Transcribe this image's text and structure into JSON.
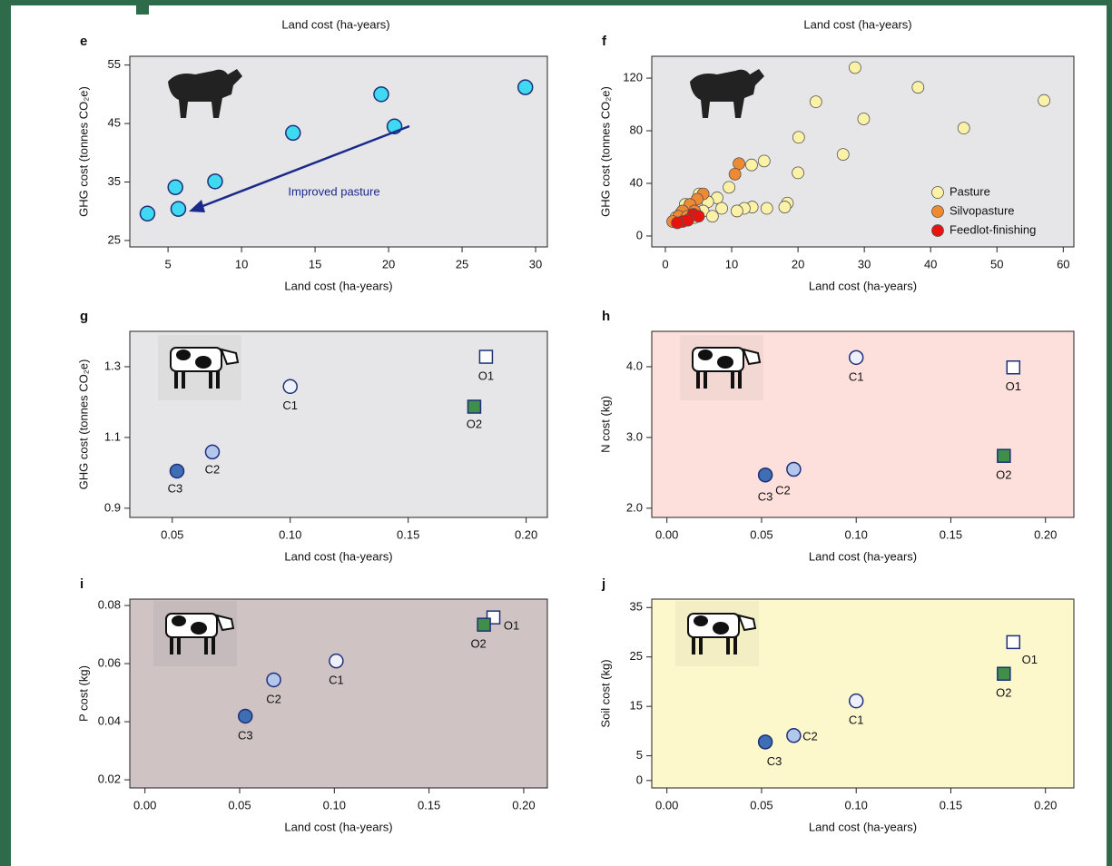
{
  "cropped_labels": [
    "Land cost (ha-years)",
    "Land cost (ha-years)"
  ],
  "chart_data": [
    {
      "type": "scatter",
      "panel": "e",
      "xlabel": "Land cost (ha-years)",
      "ylabel": "GHG cost (tonnes CO₂e)",
      "background": "#e6e6e8",
      "xlim": [
        2.4,
        30.8
      ],
      "ylim": [
        23.9,
        56.5
      ],
      "xticks": [
        5,
        10,
        15,
        20,
        25,
        30
      ],
      "yticks": [
        25,
        35,
        45,
        55
      ],
      "x": [
        3.6,
        5.5,
        5.7,
        8.2,
        13.5,
        19.5,
        20.4,
        29.3
      ],
      "values": [
        29.6,
        34.1,
        30.4,
        35.1,
        43.4,
        50.0,
        44.5,
        51.2
      ],
      "color": "#3fd9f2",
      "annotation": "Improved pasture"
    },
    {
      "type": "scatter",
      "panel": "f",
      "xlabel": "Land cost (ha-years)",
      "ylabel": "GHG cost (tonnes CO₂e)",
      "background": "#e6e6e8",
      "xlim": [
        -2.05,
        61.6
      ],
      "ylim": [
        -8.3,
        136.6
      ],
      "xticks": [
        0,
        10,
        20,
        30,
        40,
        50,
        60
      ],
      "yticks": [
        0,
        40,
        80,
        120
      ],
      "legend": "lower right",
      "series": [
        {
          "name": "Pasture",
          "color": "#fbf2a8",
          "x": [
            28.6,
            38.1,
            57.1,
            45,
            22.7,
            29.9,
            20.1,
            26.8,
            20,
            14.9,
            13,
            9.6,
            18.4,
            18,
            15.3,
            13.1,
            11.9,
            10.8,
            7.8,
            6.4,
            5.1,
            3.7,
            2.3,
            1.2,
            4.4,
            5.7,
            8.5,
            7.1,
            3,
            1.6
          ],
          "values": [
            128,
            113,
            103,
            82,
            102,
            89,
            75,
            62,
            48,
            57,
            54,
            37,
            25,
            22,
            21,
            22,
            21,
            19,
            29,
            26,
            32,
            22,
            17,
            11,
            14,
            19,
            21,
            15,
            24,
            14
          ]
        },
        {
          "name": "Silvopasture",
          "color": "#f08a32",
          "x": [
            11.1,
            10.5,
            5.7,
            4.8,
            3.7,
            2.6,
            2,
            1.1,
            4.4,
            3.3
          ],
          "values": [
            55,
            47,
            32,
            28,
            24,
            19,
            15,
            11,
            19,
            15
          ]
        },
        {
          "name": "Feedlot-finishing",
          "color": "#e8120e",
          "x": [
            2.6,
            4.2,
            5,
            1.8,
            3.4
          ],
          "values": [
            11,
            16.5,
            15,
            10,
            12
          ]
        }
      ]
    },
    {
      "type": "scatter",
      "panel": "g",
      "xlabel": "Land cost (ha-years)",
      "ylabel": "GHG cost (tonnes CO₂e)",
      "background": "#e6e6e8",
      "xlim": [
        0.032,
        0.209
      ],
      "ylim": [
        0.874,
        1.4
      ],
      "xticks": [
        0.05,
        {
          "value": 0.1,
          "label": "0.10"
        },
        0.15,
        {
          "value": 0.2,
          "label": "0.20"
        }
      ],
      "yticks": [
        0.9,
        1.1,
        1.3
      ],
      "x": [
        0.1,
        0.067,
        0.052,
        0.183,
        0.178
      ],
      "values": [
        1.244,
        1.059,
        1.005,
        1.328,
        1.187
      ],
      "point_labels": [
        "C1",
        "C2",
        "C3",
        "O1",
        "O2"
      ],
      "markers": [
        "circle",
        "circle",
        "circle",
        "square",
        "square"
      ],
      "colors": [
        "#eef0fb",
        "#b3c6ec",
        "#3e6fb5",
        "#ffffff",
        "#3f8f4a"
      ]
    },
    {
      "type": "scatter",
      "panel": "h",
      "xlabel": "Land cost (ha-years)",
      "ylabel": "N cost (kg)",
      "background": "#fde0dc",
      "xlim": [
        -0.008,
        0.215
      ],
      "ylim": [
        1.87,
        4.5
      ],
      "xticks": [
        {
          "value": 0,
          "label": "0.00"
        },
        0.05,
        {
          "value": 0.1,
          "label": "0.10"
        },
        0.15,
        {
          "value": 0.2,
          "label": "0.20"
        }
      ],
      "yticks": [
        {
          "value": 2,
          "label": "2.0"
        },
        {
          "value": 3,
          "label": "3.0"
        },
        {
          "value": 4,
          "label": "4.0"
        }
      ],
      "x": [
        0.1,
        0.067,
        0.052,
        0.183,
        0.178
      ],
      "values": [
        4.13,
        2.55,
        2.47,
        3.99,
        2.74
      ],
      "point_labels": [
        "C1",
        "C2",
        "C3",
        "O1",
        "O2"
      ],
      "markers": [
        "circle",
        "circle",
        "circle",
        "square",
        "square"
      ],
      "colors": [
        "#eef0fb",
        "#b3c6ec",
        "#3e6fb5",
        "#ffffff",
        "#3f8f4a"
      ]
    },
    {
      "type": "scatter",
      "panel": "i",
      "xlabel": "Land cost (ha-years)",
      "ylabel": "P cost (kg)",
      "background": "#cfc3c4",
      "xlim": [
        -0.008,
        0.2125
      ],
      "ylim": [
        0.0172,
        0.0822
      ],
      "xticks": [
        {
          "value": 0,
          "label": "0.00"
        },
        0.05,
        {
          "value": 0.1,
          "label": "0.10"
        },
        0.15,
        {
          "value": 0.2,
          "label": "0.20"
        }
      ],
      "yticks": [
        0.02,
        0.04,
        0.06,
        0.08
      ],
      "x": [
        0.101,
        0.068,
        0.053,
        0.184,
        0.179
      ],
      "values": [
        0.0609,
        0.0544,
        0.0419,
        0.0759,
        0.0734
      ],
      "point_labels": [
        "C1",
        "C2",
        "C3",
        "O1",
        "O2"
      ],
      "markers": [
        "circle",
        "circle",
        "circle",
        "square",
        "square"
      ],
      "colors": [
        "#eef0fb",
        "#b3c6ec",
        "#3e6fb5",
        "#ffffff",
        "#3f8f4a"
      ]
    },
    {
      "type": "scatter",
      "panel": "j",
      "xlabel": "Land cost (ha-years)",
      "ylabel": "Soil cost (kg)",
      "background": "#fdf8cc",
      "xlim": [
        -0.008,
        0.215
      ],
      "ylim": [
        -1.5,
        36.7
      ],
      "xticks": [
        {
          "value": 0,
          "label": "0.00"
        },
        0.05,
        {
          "value": 0.1,
          "label": "0.10"
        },
        0.15,
        {
          "value": 0.2,
          "label": "0.20"
        }
      ],
      "yticks": [
        0,
        5,
        15,
        25,
        35
      ],
      "x": [
        0.1,
        0.067,
        0.052,
        0.183,
        0.178
      ],
      "values": [
        16.1,
        9.1,
        7.8,
        28.0,
        21.6
      ],
      "point_labels": [
        "C1",
        "C2",
        "C3",
        "O1",
        "O2"
      ],
      "markers": [
        "circle",
        "circle",
        "circle",
        "square",
        "square"
      ],
      "colors": [
        "#eef0fb",
        "#b3c6ec",
        "#3e6fb5",
        "#ffffff",
        "#3f8f4a"
      ]
    }
  ]
}
